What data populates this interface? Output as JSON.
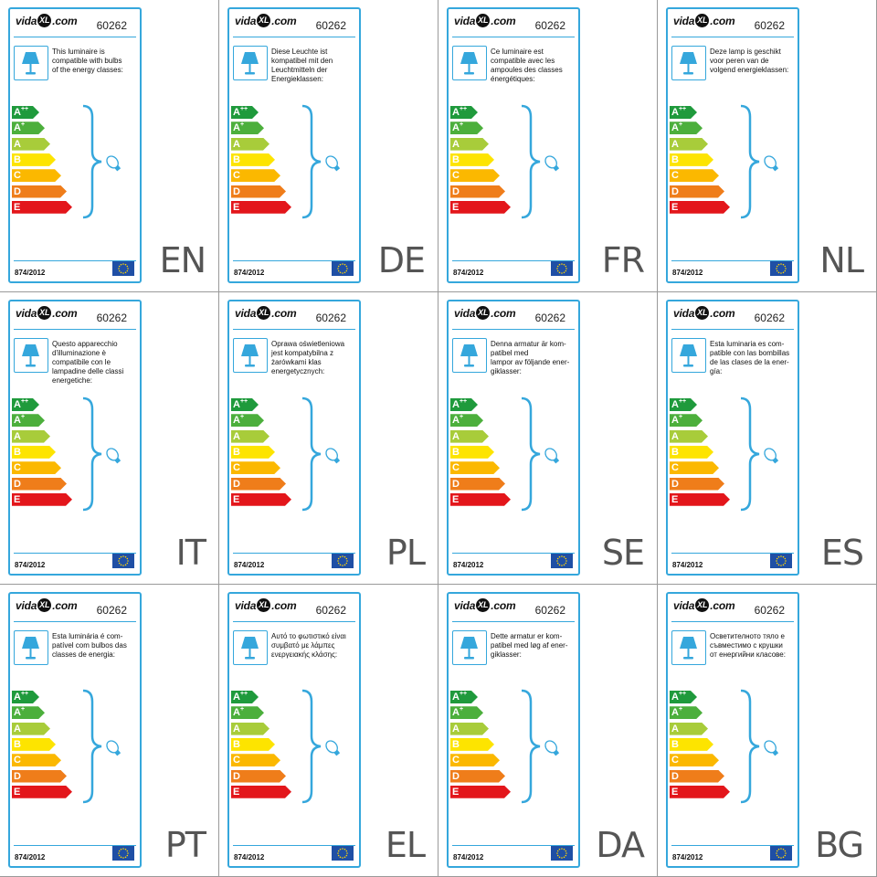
{
  "brand": {
    "pre": "vida",
    "mark": "XL",
    "post": ".com"
  },
  "product_code": "60262",
  "regulation": "874/2012",
  "colors": {
    "border": "#35a7dc",
    "classes": [
      "#1f9a3c",
      "#4caf3c",
      "#a8cc3a",
      "#fde400",
      "#fbb800",
      "#ef7d1a",
      "#e3161b"
    ]
  },
  "icons": [
    "table-lamp-icon",
    "bulb-icon",
    "eu-flag-icon",
    "brace-icon"
  ],
  "energy_classes": [
    {
      "base": "A",
      "sup": "++"
    },
    {
      "base": "A",
      "sup": "+"
    },
    {
      "base": "A",
      "sup": ""
    },
    {
      "base": "B",
      "sup": ""
    },
    {
      "base": "C",
      "sup": ""
    },
    {
      "base": "D",
      "sup": ""
    },
    {
      "base": "E",
      "sup": ""
    }
  ],
  "labels": [
    {
      "lang": "EN",
      "text": "This luminaire is\ncompatible with bulbs\nof the energy classes:"
    },
    {
      "lang": "DE",
      "text": "Diese Leuchte ist\nkompatibel mit den\nLeuchtmitteln der\nEnergieklassen:"
    },
    {
      "lang": "FR",
      "text": "Ce luminaire est\ncompatible avec les\nampoules des classes\nénergétiques:"
    },
    {
      "lang": "NL",
      "text": "Deze lamp is geschikt\nvoor peren van de\nvolgend energieklassen:"
    },
    {
      "lang": "IT",
      "text": "Questo apparecchio\nd'illuminazione è\ncompatibile con le\nlampadine delle classi\nenergetiche:"
    },
    {
      "lang": "PL",
      "text": "Oprawa oświetleniowa\njest kompatybilna z\nżarówkami klas\nenergetycznych:"
    },
    {
      "lang": "SE",
      "text": "Denna armatur är kom-\npatibel med\nlampor av följande ener-\ngiklasser:"
    },
    {
      "lang": "ES",
      "text": "Esta luminaria es com-\npatible con las bombillas\nde las clases de la ener-\ngía:"
    },
    {
      "lang": "PT",
      "text": "Esta luminária é com-\npatível com bulbos das\nclasses de energia:"
    },
    {
      "lang": "EL",
      "text": "Αυτό το φωτιστικό είναι\nσυμβατό με λάμπες\nενεργειακής κλάσης:"
    },
    {
      "lang": "DA",
      "text": "Dette armatur er kom-\npatibel med løg af ener-\ngiklasser:"
    },
    {
      "lang": "BG",
      "text": "Осветителното тяло е\nсъвместимо с крушки\nот енергийни класове:"
    }
  ]
}
